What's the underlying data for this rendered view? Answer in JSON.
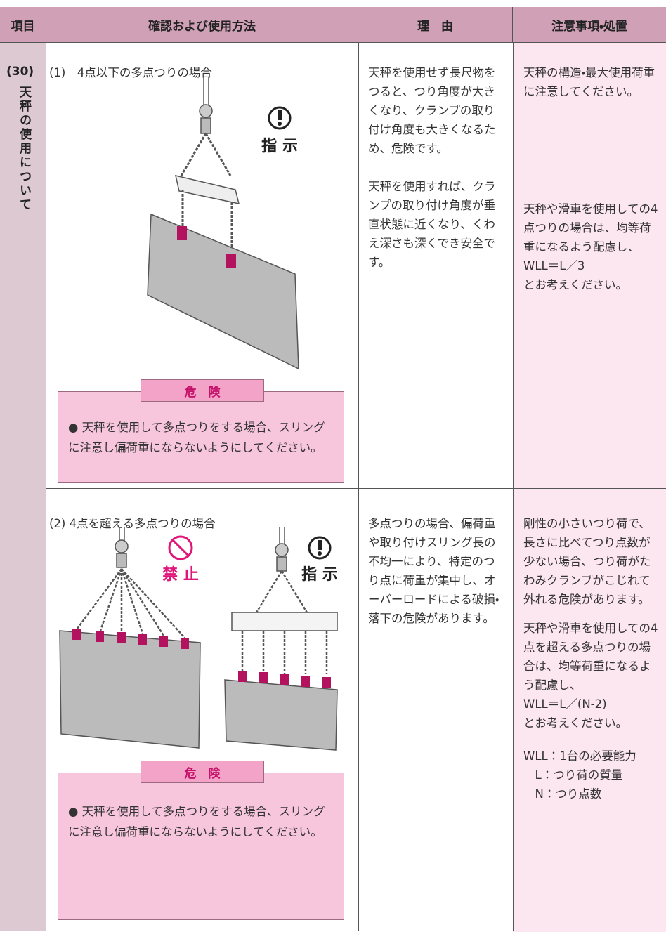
{
  "header": [
    "項目",
    "確認および使用方法",
    "理　由",
    "注意事項・処置"
  ],
  "item": {
    "number": "(30)",
    "label": "天秤の使用について"
  },
  "rows": [
    {
      "title": "(1)　4点以下の多点つりの場合",
      "icons": [
        {
          "label": "指 示"
        }
      ],
      "danger": {
        "label": "危　険",
        "text": "● 天秤を使用して多点つりをする場合、スリングに注意し偏荷重にならないようにしてください。"
      },
      "reason": [
        "天秤を使用せず長尺物をつると、つり角度が大きくなり、クランプの取り付け角度も大きくなるため、危険です。",
        "天秤を使用すれば、クランプの取り付け角度が垂直状態に近くなり、くわえ深さも深くでき安全です。"
      ],
      "notes": [
        [
          "天秤の構造・最大使用荷重に注意してください。"
        ],
        [
          "天秤や滑車を使用しての4点つりの場合は、均等荷重になるよう配慮し、",
          "WLL＝L／3",
          "とお考えください。"
        ]
      ]
    },
    {
      "title": "(2) 4点を超える多点つりの場合",
      "icons": [
        {
          "label": "禁 止"
        },
        {
          "label": "指 示"
        }
      ],
      "danger": {
        "label": "危　険",
        "text": "● 天秤を使用して多点つりをする場合、スリングに注意し偏荷重にならないようにしてください。"
      },
      "reason": [
        "多点つりの場合、偏荷重や取り付けスリング長の不均一により、特定のつり点に荷重が集中し、オーバーロードによる破損・落下の危険があります。"
      ],
      "notes": [
        [
          "剛性の小さいつり荷で、長さに比べてつり点数が少ない場合、つり荷がたわみクランプがこじれて外れる危険があります。"
        ],
        [
          "天秤や滑車を使用しての4点を超える多点つりの場合は、均等荷重になるよう配慮し、",
          "WLL＝L／(N-2)",
          "とお考えください。"
        ],
        [
          "WLL：1台の必要能力",
          "　L：つり荷の質量",
          "　N：つり点数"
        ]
      ]
    }
  ]
}
